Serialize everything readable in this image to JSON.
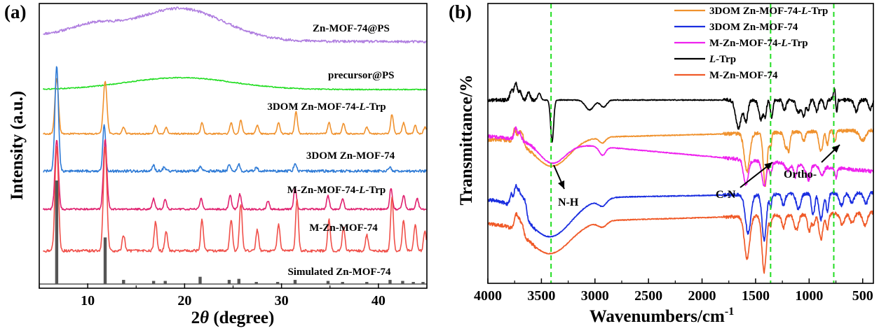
{
  "chart_data": [
    {
      "panel_label": "(a)",
      "type": "line",
      "xlabel_parts": [
        "2",
        "θ",
        " (degree)"
      ],
      "ylabel": "Intensity (a.u.)",
      "xlim": [
        5,
        45
      ],
      "x_ticks": [
        10,
        20,
        30,
        40
      ],
      "y_tick_labels": false,
      "grid": false,
      "series": [
        {
          "name": "Zn-MOF-74@PS",
          "color": "#b07fe0",
          "shape": "amorphous",
          "broad_peaks": [
            [
              10.5,
              0.35,
              2.5
            ],
            [
              19.5,
              1.0,
              4.5
            ]
          ],
          "baseline_trend": "decaying"
        },
        {
          "name": "precursor@PS",
          "color": "#22dd22",
          "shape": "amorphous",
          "broad_peaks": [
            [
              19.5,
              1.0,
              5.5
            ]
          ],
          "baseline_trend": "flat"
        },
        {
          "name": "3DOM Zn-MOF-74-L-Trp",
          "color": "#f0922e",
          "shape": "crystalline",
          "peaks": [
            [
              6.8,
              1.0
            ],
            [
              11.8,
              0.95
            ],
            [
              13.7,
              0.12
            ],
            [
              17.0,
              0.15
            ],
            [
              18.1,
              0.12
            ],
            [
              21.8,
              0.2
            ],
            [
              24.8,
              0.2
            ],
            [
              25.8,
              0.25
            ],
            [
              27.5,
              0.15
            ],
            [
              29.7,
              0.2
            ],
            [
              31.5,
              0.4
            ],
            [
              34.9,
              0.2
            ],
            [
              36.4,
              0.18
            ],
            [
              38.8,
              0.12
            ],
            [
              41.4,
              0.35
            ],
            [
              42.6,
              0.2
            ],
            [
              43.8,
              0.15
            ],
            [
              44.8,
              0.12
            ]
          ]
        },
        {
          "name": "3DOM Zn-MOF-74",
          "color": "#2f7bd6",
          "shape": "crystalline",
          "peaks": [
            [
              6.8,
              1.0
            ],
            [
              11.7,
              0.45
            ],
            [
              16.8,
              0.05
            ],
            [
              17.9,
              0.04
            ],
            [
              21.6,
              0.04
            ],
            [
              24.6,
              0.05
            ],
            [
              25.6,
              0.06
            ],
            [
              27.4,
              0.03
            ],
            [
              31.4,
              0.07
            ],
            [
              41.2,
              0.03
            ]
          ]
        },
        {
          "name": "M-Zn-MOF-74-L-Trp",
          "color": "#e0206e",
          "shape": "crystalline",
          "peaks": [
            [
              6.8,
              1.0
            ],
            [
              11.8,
              1.0
            ],
            [
              16.8,
              0.15
            ],
            [
              18.0,
              0.15
            ],
            [
              21.7,
              0.15
            ],
            [
              24.7,
              0.2
            ],
            [
              25.7,
              0.22
            ],
            [
              28.6,
              0.12
            ],
            [
              31.4,
              0.3
            ],
            [
              34.8,
              0.2
            ],
            [
              36.3,
              0.15
            ],
            [
              41.3,
              0.3
            ],
            [
              42.6,
              0.2
            ],
            [
              44.0,
              0.15
            ]
          ]
        },
        {
          "name": "M-Zn-MOF-74",
          "color": "#f0504a",
          "shape": "crystalline",
          "peaks": [
            [
              6.8,
              1.0
            ],
            [
              11.8,
              1.0
            ],
            [
              13.7,
              0.15
            ],
            [
              17.0,
              0.28
            ],
            [
              18.1,
              0.18
            ],
            [
              21.8,
              0.3
            ],
            [
              24.8,
              0.3
            ],
            [
              25.8,
              0.45
            ],
            [
              27.5,
              0.2
            ],
            [
              29.7,
              0.25
            ],
            [
              31.6,
              0.5
            ],
            [
              34.9,
              0.3
            ],
            [
              36.4,
              0.22
            ],
            [
              38.8,
              0.15
            ],
            [
              41.4,
              0.5
            ],
            [
              42.6,
              0.3
            ],
            [
              43.8,
              0.25
            ],
            [
              44.8,
              0.18
            ]
          ]
        },
        {
          "name": "Simulated Zn-MOF-74",
          "color": "#555555",
          "shape": "sticks",
          "peaks": [
            [
              6.8,
              1.0
            ],
            [
              11.8,
              0.45
            ],
            [
              13.7,
              0.04
            ],
            [
              16.8,
              0.03
            ],
            [
              18.0,
              0.03
            ],
            [
              21.6,
              0.07
            ],
            [
              24.6,
              0.04
            ],
            [
              25.6,
              0.05
            ],
            [
              27.4,
              0.02
            ],
            [
              29.6,
              0.02
            ],
            [
              31.4,
              0.04
            ],
            [
              34.8,
              0.03
            ],
            [
              36.3,
              0.02
            ],
            [
              38.8,
              0.02
            ],
            [
              41.2,
              0.04
            ],
            [
              42.5,
              0.03
            ],
            [
              43.6,
              0.02
            ],
            [
              44.6,
              0.02
            ]
          ]
        }
      ]
    },
    {
      "panel_label": "(b)",
      "type": "line",
      "xlabel": "Wavenumbers/cm",
      "xlabel_sup": "-1",
      "ylabel": "Transmittance/%",
      "xlim": [
        4000,
        400
      ],
      "x_ticks": [
        4000,
        3500,
        3000,
        2500,
        2000,
        1500,
        1000,
        500
      ],
      "y_tick_labels": false,
      "grid": false,
      "reference_lines": [
        3410,
        1360,
        770
      ],
      "annotations": [
        "N-H",
        "C-N",
        "Ortho-"
      ],
      "legend_position": "top-right",
      "series": [
        {
          "name": "3DOM Zn-MOF-74-L-Trp",
          "color": "#f0922e"
        },
        {
          "name": "3DOM Zn-MOF-74",
          "color": "#1a2ee0"
        },
        {
          "name": "M-Zn-MOF-74-L-Trp",
          "color": "#ee22ee"
        },
        {
          "name": "L-Trp",
          "color": "#000000"
        },
        {
          "name": "M-Zn-MOF-74",
          "color": "#f05a28"
        }
      ]
    }
  ]
}
